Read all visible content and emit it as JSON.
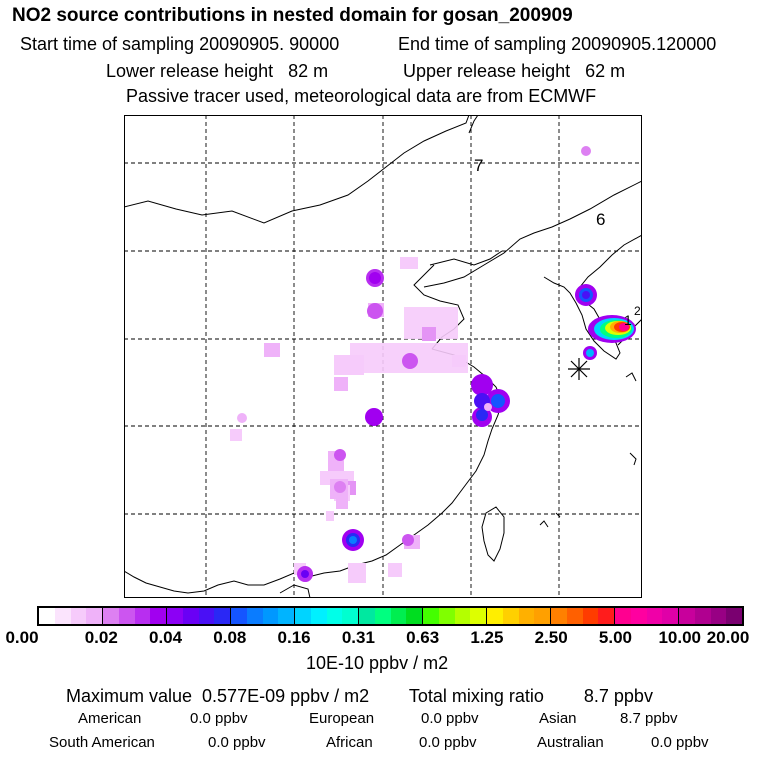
{
  "header": {
    "title": "NO2 source contributions in nested domain for gosan_200909",
    "start_time": "Start time of sampling 20090905. 90000",
    "end_time": "End time of sampling 20090905.120000",
    "lower_release": "Lower release height   82 m",
    "upper_release": "Upper release height   62 m",
    "tracer_note": "Passive tracer used, meteorological data are from ECMWF"
  },
  "map": {
    "contour_labels": [
      "7",
      "6",
      "1",
      "2"
    ],
    "receptor_marker": "asterisk"
  },
  "colorbar": {
    "tick_labels": [
      "0.00",
      "0.02",
      "0.04",
      "0.08",
      "0.16",
      "0.31",
      "0.63",
      "1.25",
      "2.50",
      "5.00",
      "10.00",
      "20.00"
    ],
    "segments": [
      [
        "#ffffff",
        "#fbe4fd",
        "#f6cbfb",
        "#efb2f9"
      ],
      [
        "#dd80f2",
        "#cc55f0",
        "#b82ef0",
        "#a100f0"
      ],
      [
        "#8c00f5",
        "#6a00f5",
        "#4a10f5",
        "#2a28f5"
      ],
      [
        "#1555ff",
        "#0a7cff",
        "#0098ff",
        "#00b4ff"
      ],
      [
        "#00d4ff",
        "#00f0ff",
        "#00ffe8",
        "#00ffd0"
      ],
      [
        "#00e8a0",
        "#00ff80",
        "#00ee50",
        "#00dd20"
      ],
      [
        "#44ff00",
        "#80ff00",
        "#b4ff00",
        "#ddff00"
      ],
      [
        "#ffee00",
        "#ffd000",
        "#ffb000",
        "#ffa000"
      ],
      [
        "#ff8000",
        "#ff6000",
        "#ff3c00",
        "#ff1c1c"
      ],
      [
        "#ff0090",
        "#ff00a0",
        "#f000a8",
        "#e000a8"
      ],
      [
        "#c8009c",
        "#b00090",
        "#980084",
        "#7a0070"
      ]
    ],
    "units": "10E-10 ppbv / m2"
  },
  "summary": {
    "max_line": "Maximum value  0.577E-09 ppbv / m2        Total mixing ratio        8.7 ppbv",
    "regions": [
      {
        "name": "American",
        "value": "0.0 ppbv"
      },
      {
        "name": "European",
        "value": "0.0 ppbv"
      },
      {
        "name": "Asian",
        "value": "8.7 ppbv"
      },
      {
        "name": "South American",
        "value": "0.0 ppbv"
      },
      {
        "name": "African",
        "value": "0.0 ppbv"
      },
      {
        "name": "Australian",
        "value": "0.0 ppbv"
      }
    ]
  }
}
